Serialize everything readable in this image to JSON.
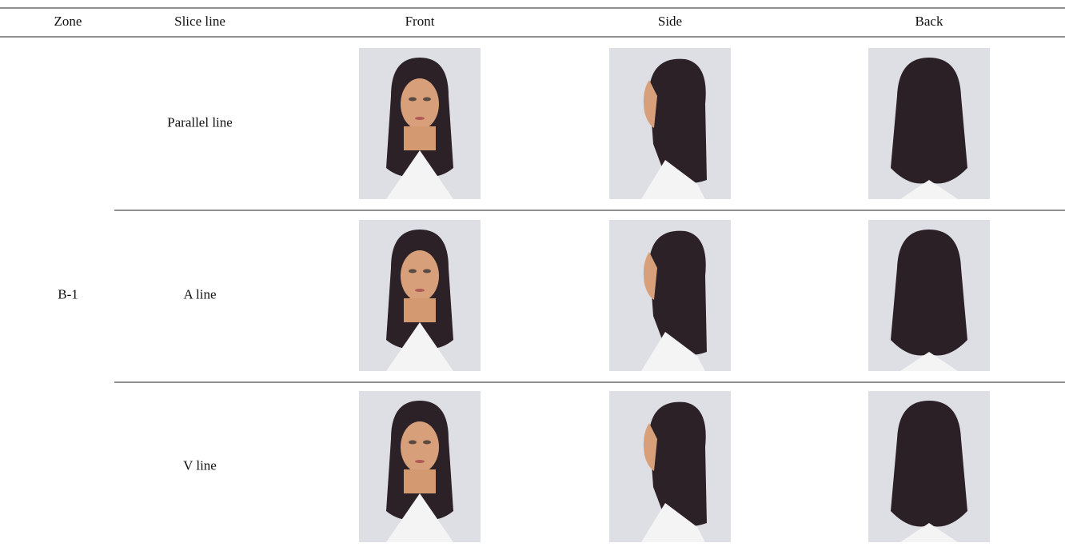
{
  "table": {
    "header": [
      "Zone",
      "Slice line",
      "Front",
      "Side",
      "Back"
    ],
    "zone": "B-1",
    "rows": [
      {
        "slice_line": "Parallel line"
      },
      {
        "slice_line": "A line"
      },
      {
        "slice_line": "V line"
      }
    ]
  }
}
